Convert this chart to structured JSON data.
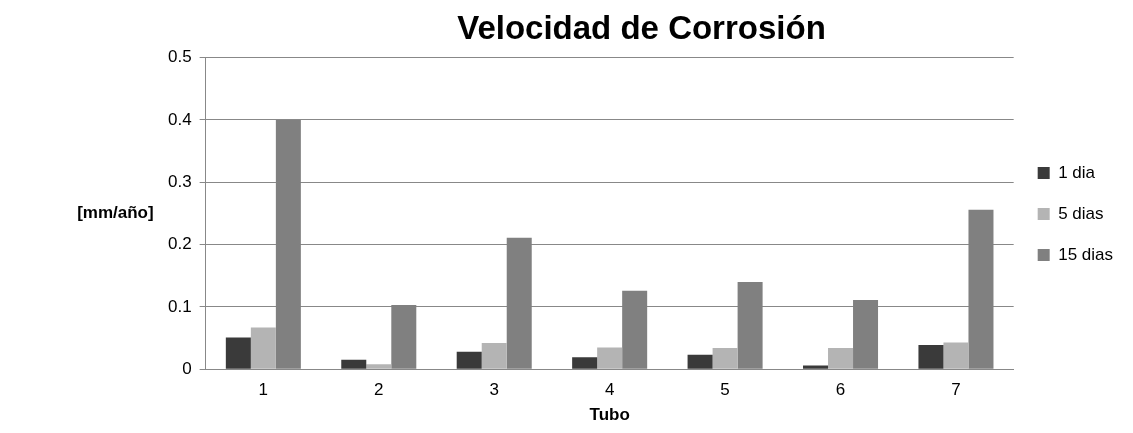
{
  "chart_data": {
    "type": "bar",
    "title": "Velocidad de Corrosión",
    "xlabel": "Tubo",
    "ylabel": "[mm/año]",
    "categories": [
      "1",
      "2",
      "3",
      "4",
      "5",
      "6",
      "7"
    ],
    "series": [
      {
        "name": "1 dia",
        "color": "#3a3a3a",
        "values": [
          0.051,
          0.015,
          0.028,
          0.019,
          0.023,
          0.006,
          0.039
        ]
      },
      {
        "name": "5 dias",
        "color": "#b4b4b4",
        "values": [
          0.067,
          0.008,
          0.042,
          0.035,
          0.034,
          0.034,
          0.043
        ]
      },
      {
        "name": "15 dias",
        "color": "#808080",
        "values": [
          0.4,
          0.103,
          0.211,
          0.126,
          0.14,
          0.111,
          0.256
        ]
      }
    ],
    "ylim": [
      0,
      0.5
    ],
    "yticks": [
      0,
      0.1,
      0.2,
      0.3,
      0.4,
      0.5
    ],
    "grid": "y",
    "legend": "right"
  }
}
